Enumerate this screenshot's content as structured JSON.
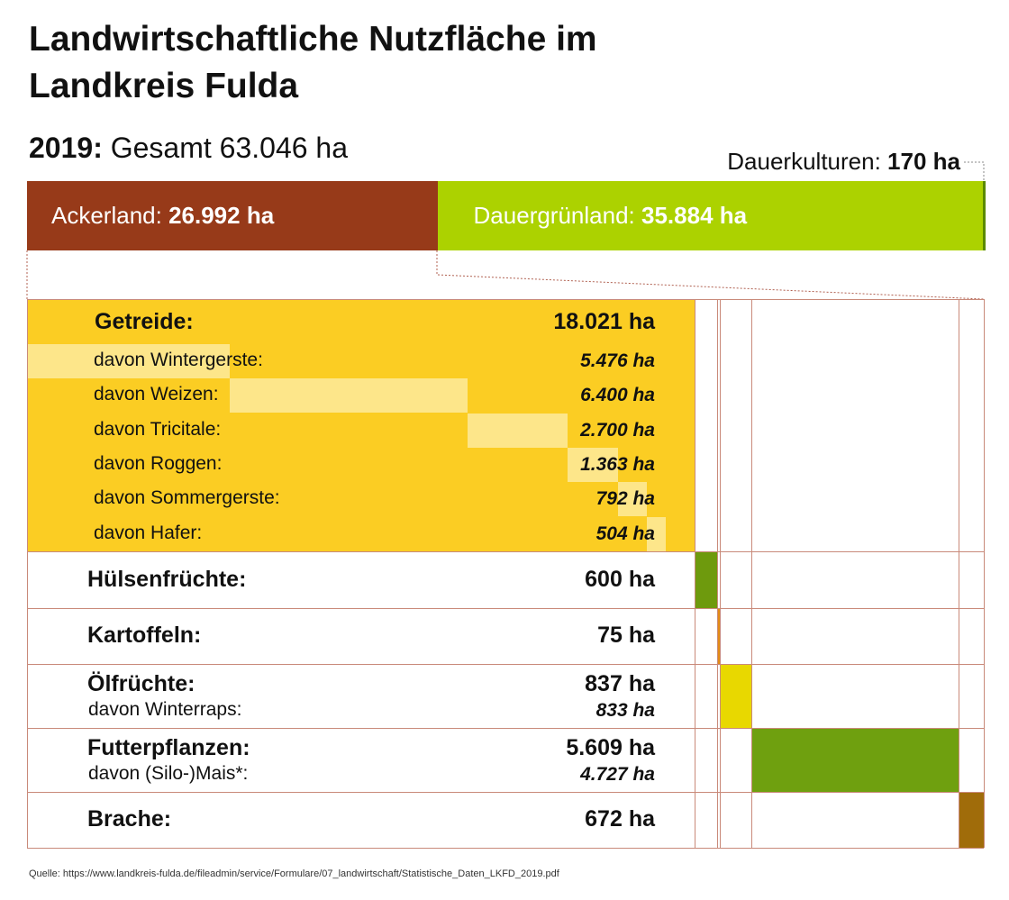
{
  "header": {
    "title": "Landwirtschaftliche Nutzfläche im Landkreis Fulda",
    "year": "2019:",
    "total_text": "Gesamt",
    "total": 63046,
    "total_label": "63.046 ha"
  },
  "overview": [
    {
      "name": "Ackerland:",
      "value": 26992,
      "value_label": "26.992 ha",
      "color": "#973a19"
    },
    {
      "name": "Dauergrünland:",
      "value": 35884,
      "value_label": "35.884 ha",
      "color": "#acd200"
    },
    {
      "name": "Dauerkulturen:",
      "value": 170,
      "value_label": "170 ha",
      "color": "#5b8a00"
    }
  ],
  "crops": [
    {
      "name": "Getreide:",
      "value": 18021,
      "value_label": "18.021 ha",
      "color": "#fbcd23",
      "part_color": "#fde68a",
      "parts": [
        {
          "name": "davon Wintergerste:",
          "value": 5476,
          "value_label": "5.476 ha"
        },
        {
          "name": "davon Weizen:",
          "value": 6400,
          "value_label": "6.400 ha"
        },
        {
          "name": "davon Tricitale:",
          "value": 2700,
          "value_label": "2.700 ha"
        },
        {
          "name": "davon Roggen:",
          "value": 1363,
          "value_label": "1.363 ha"
        },
        {
          "name": "davon Sommergerste:",
          "value": 792,
          "value_label": "792 ha"
        },
        {
          "name": "davon Hafer:",
          "value": 504,
          "value_label": "504 ha"
        }
      ]
    },
    {
      "name": "Hülsenfrüchte:",
      "value": 600,
      "value_label": "600 ha",
      "color": "#6e9a0d"
    },
    {
      "name": "Kartoffeln:",
      "value": 75,
      "value_label": "75 ha",
      "color": "#e38c14"
    },
    {
      "name": "Ölfrüchte:",
      "value": 837,
      "value_label": "837 ha",
      "color": "#e8d800",
      "parts": [
        {
          "name": "davon Winterraps:",
          "value_label": "833 ha"
        }
      ]
    },
    {
      "name": "Futterpflanzen:",
      "value": 5609,
      "value_label": "5.609 ha",
      "color": "#6fa00f",
      "parts": [
        {
          "name": "davon (Silo-)Mais*:",
          "value_label": "4.727 ha"
        }
      ]
    },
    {
      "name": "Brache:",
      "value": 672,
      "value_label": "672 ha",
      "color": "#a06c0a"
    }
  ],
  "source": "Quelle: https://www.landkreis-fulda.de/fileadmin/service/Formulare/07_landwirtschaft/Statistische_Daten_LKFD_2019.pdf"
}
